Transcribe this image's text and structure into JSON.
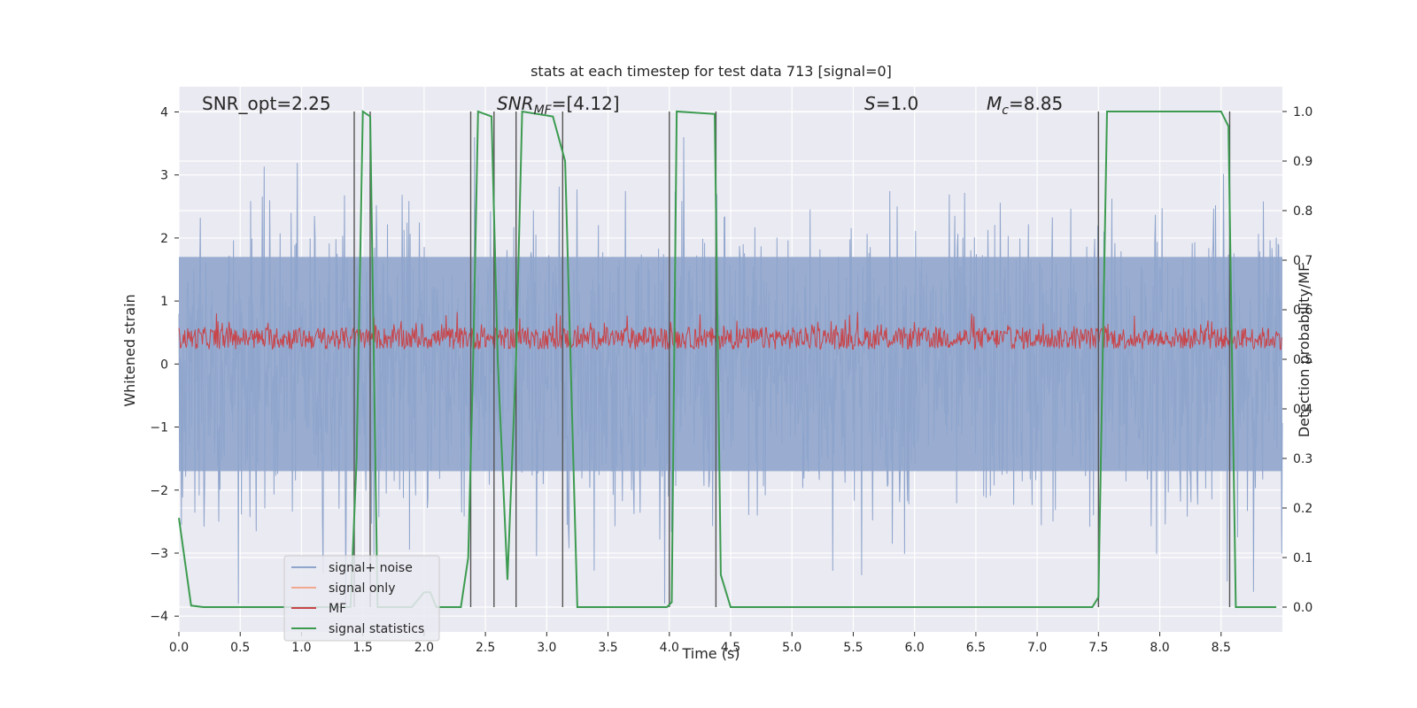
{
  "chart_data": {
    "type": "line",
    "title": "stats at each timestep for test data 713 [signal=0]",
    "xlabel": "Time (s)",
    "ylabel": "Whitened strain",
    "y2label": "Detection probability/MF",
    "xlim": [
      0.0,
      9.0
    ],
    "ylim": [
      -4.25,
      4.4
    ],
    "y2lim": [
      -0.05,
      1.05
    ],
    "xticks": [
      "0.0",
      "0.5",
      "1.0",
      "1.5",
      "2.0",
      "2.5",
      "3.0",
      "3.5",
      "4.0",
      "4.5",
      "5.0",
      "5.5",
      "6.0",
      "6.5",
      "7.0",
      "7.5",
      "8.0",
      "8.5"
    ],
    "yticks": [
      "4",
      "3",
      "2",
      "1",
      "0",
      "−1",
      "−2",
      "−3",
      "−4"
    ],
    "y2ticks": [
      "1.0",
      "0.9",
      "0.8",
      "0.7",
      "0.6",
      "0.5",
      "0.4",
      "0.3",
      "0.2",
      "0.1",
      "0.0"
    ],
    "grid": true,
    "legend_position": "lower-left",
    "annotations": {
      "snr_opt": "SNR_opt=2.25",
      "snr_mf_base": "SNR",
      "snr_mf_sub": "MF",
      "snr_mf_value": "=[4.12]",
      "s_var": "S",
      "s_value": "=1.0",
      "mc_var": "M",
      "mc_sub": "c",
      "mc_value": "=8.85"
    },
    "series": [
      {
        "name": "signal+ noise",
        "color": "#8fa5cc",
        "note": "whitened strain noise, approx. range -3.8 to 3.6"
      },
      {
        "name": "signal only",
        "color": "#f0a98e",
        "values": []
      },
      {
        "name": "MF",
        "color": "#c8454a",
        "note": "matched-filter output on right axis, approx. 0.5 to 0.59"
      },
      {
        "name": "signal statistics",
        "color": "#3c9b50",
        "points": [
          [
            0.0,
            0.18
          ],
          [
            0.1,
            0.003
          ],
          [
            0.2,
            0.0
          ],
          [
            1.4,
            0.0
          ],
          [
            1.45,
            0.3
          ],
          [
            1.5,
            1.0
          ],
          [
            1.56,
            0.99
          ],
          [
            1.62,
            0.0
          ],
          [
            1.9,
            0.0
          ],
          [
            2.0,
            0.03
          ],
          [
            2.05,
            0.03
          ],
          [
            2.1,
            0.0
          ],
          [
            2.3,
            0.0
          ],
          [
            2.36,
            0.1
          ],
          [
            2.4,
            0.5
          ],
          [
            2.44,
            1.0
          ],
          [
            2.55,
            0.99
          ],
          [
            2.6,
            0.5
          ],
          [
            2.68,
            0.055
          ],
          [
            2.75,
            0.5
          ],
          [
            2.8,
            1.0
          ],
          [
            3.05,
            0.99
          ],
          [
            3.15,
            0.9
          ],
          [
            3.25,
            0.0
          ],
          [
            3.98,
            0.0
          ],
          [
            4.02,
            0.01
          ],
          [
            4.06,
            1.0
          ],
          [
            4.37,
            0.995
          ],
          [
            4.42,
            0.065
          ],
          [
            4.5,
            0.0
          ],
          [
            7.45,
            0.0
          ],
          [
            7.5,
            0.02
          ],
          [
            7.57,
            1.0
          ],
          [
            8.5,
            1.0
          ],
          [
            8.56,
            0.97
          ],
          [
            8.62,
            0.0
          ],
          [
            8.95,
            0.0
          ]
        ]
      }
    ],
    "vertical_markers": [
      1.43,
      1.56,
      2.38,
      2.57,
      2.75,
      3.13,
      4.0,
      4.38,
      7.5,
      8.57
    ]
  }
}
